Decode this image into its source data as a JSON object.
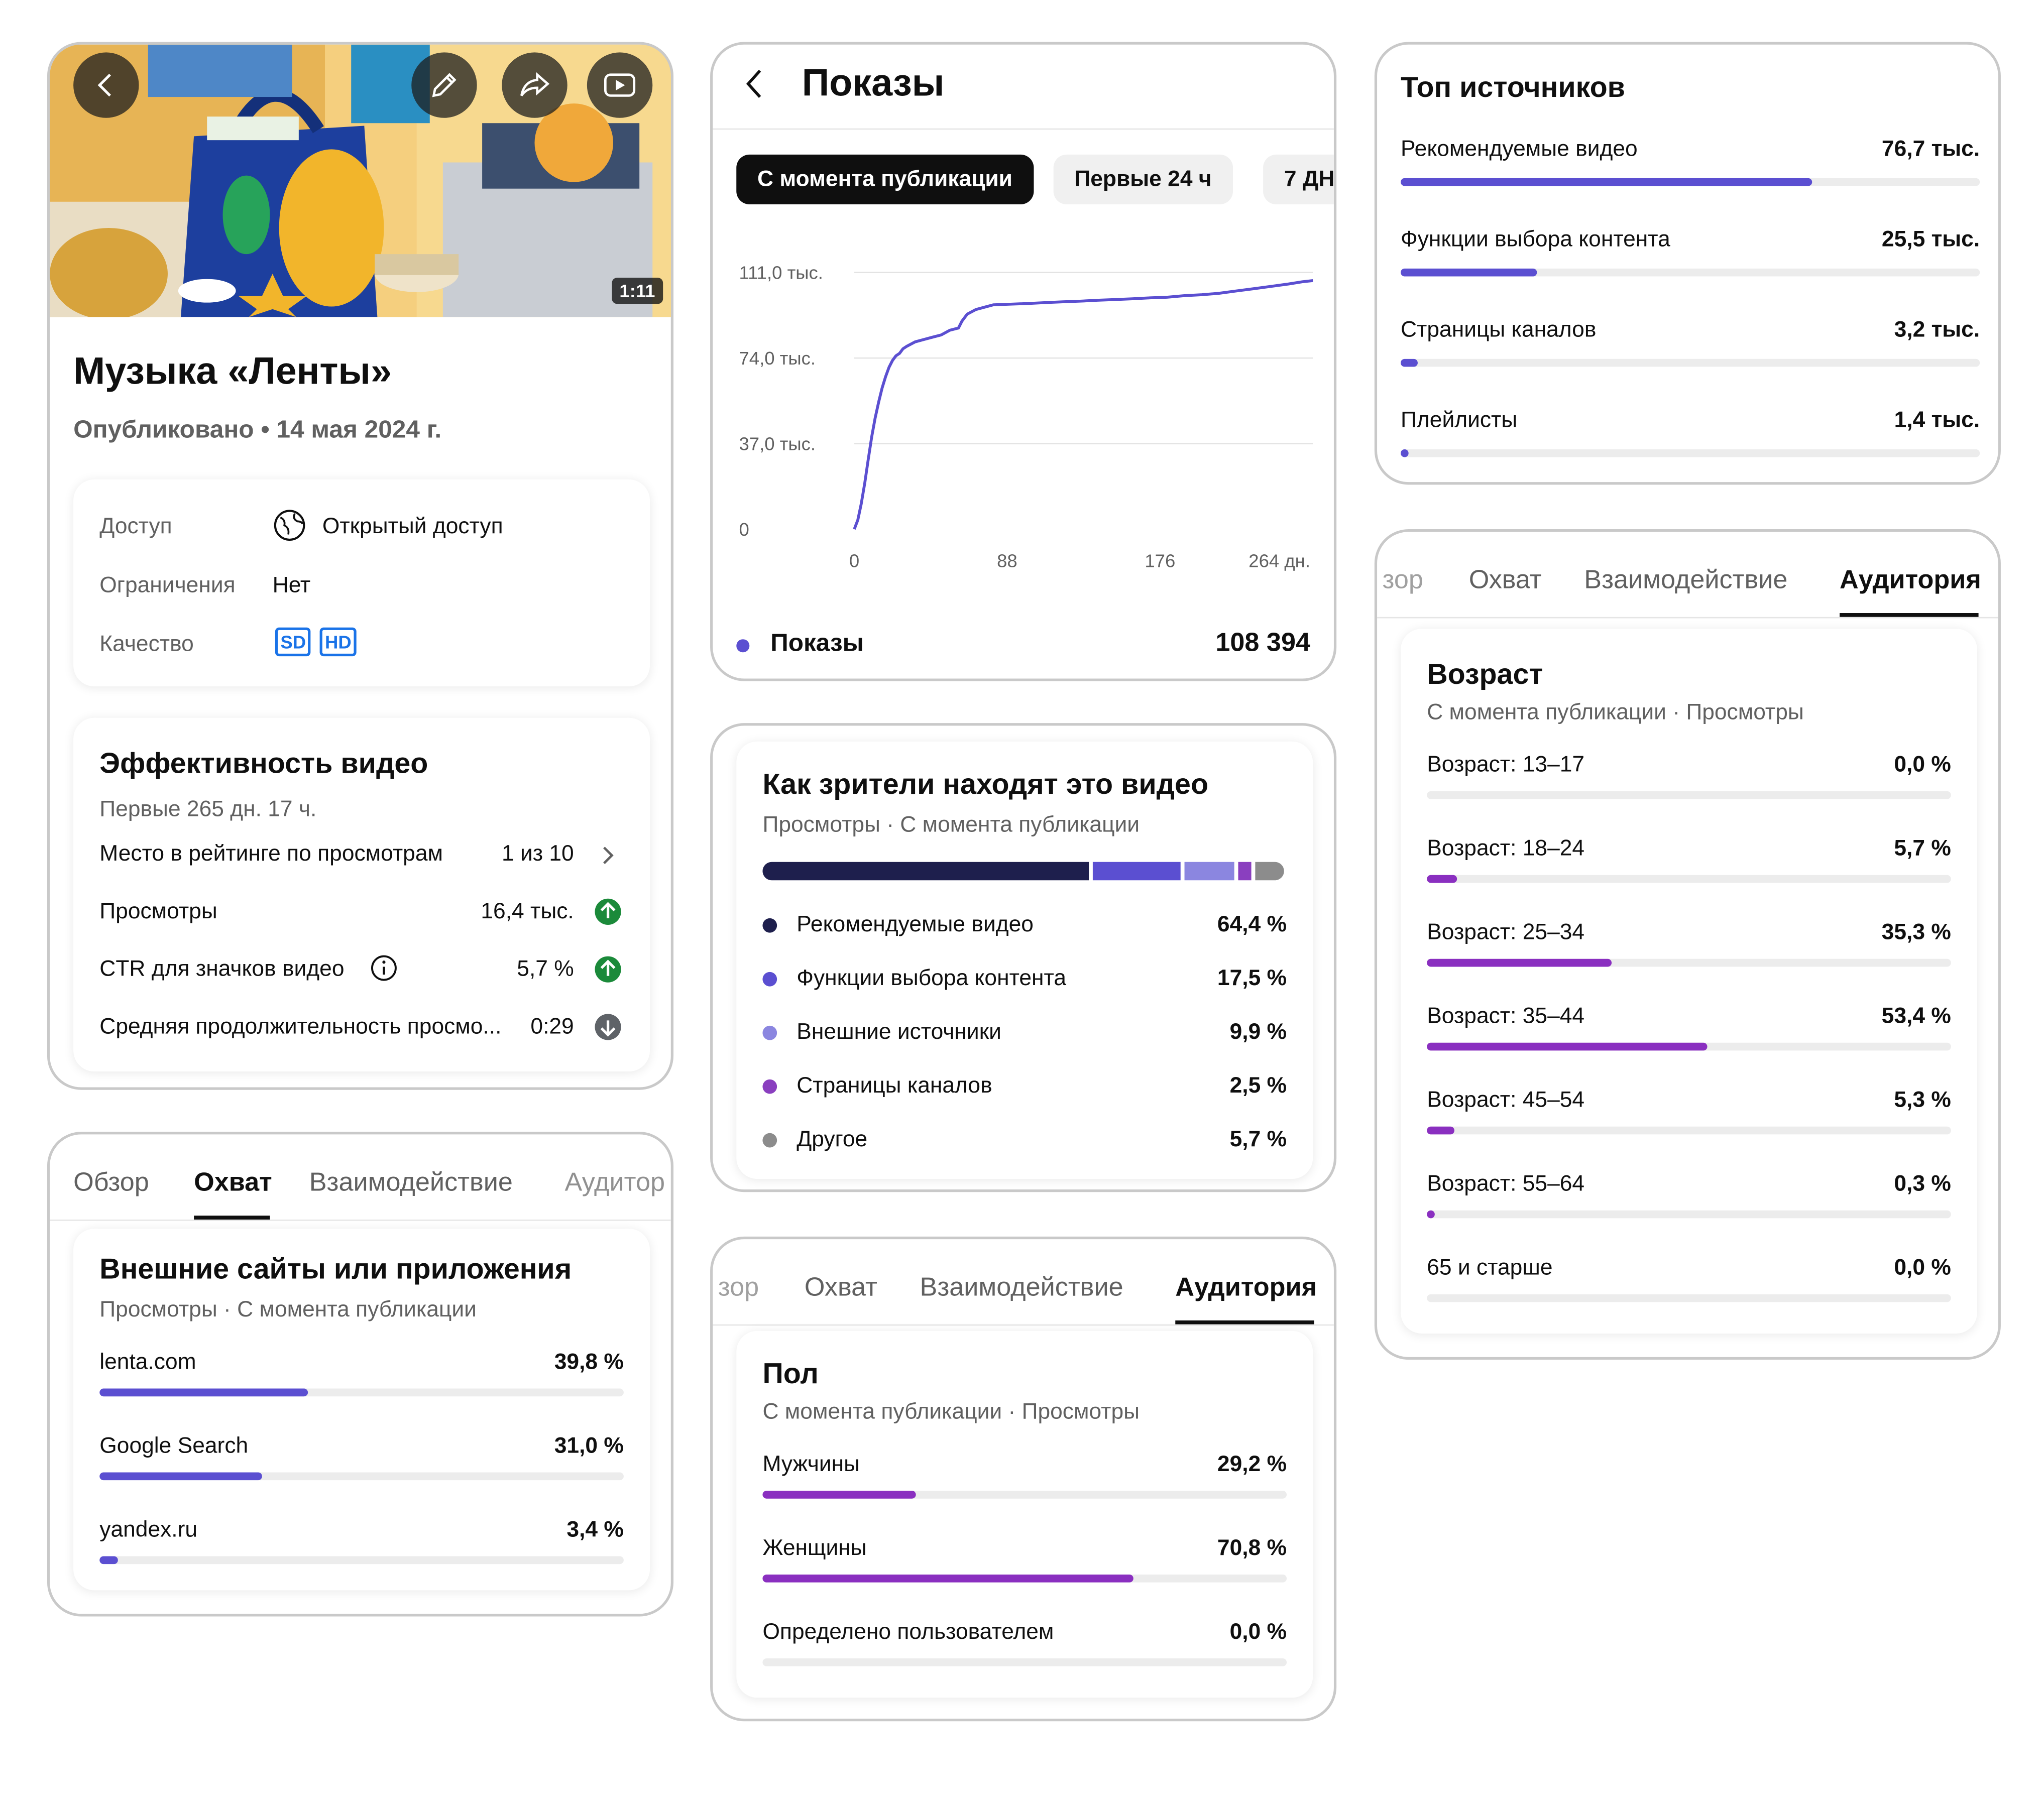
{
  "video_card": {
    "duration": "1:11",
    "title": "Музыка «Ленты»",
    "published": "Опубликовано • 14 мая 2024 г.",
    "access_label": "Доступ",
    "access_value": "Открытый доступ",
    "restrictions_label": "Ограничения",
    "restrictions_value": "Нет",
    "quality_label": "Качество",
    "quality_badges": [
      "SD",
      "HD"
    ],
    "icons": [
      "back-icon",
      "edit-icon",
      "share-icon",
      "youtube-icon",
      "globe-icon"
    ]
  },
  "performance": {
    "title": "Эффективность видео",
    "period": "Первые 265 дн. 17 ч.",
    "rows": [
      {
        "label": "Место в рейтинге по просмотрам",
        "value": "1 из 10",
        "indicator": "chevron"
      },
      {
        "label": "Просмотры",
        "value": "16,4 тыс.",
        "indicator": "up"
      },
      {
        "label": "CTR для значков видео",
        "value": "5,7 %",
        "indicator": "up"
      },
      {
        "label": "Средняя продолжительность просмо...",
        "value": "0:29",
        "indicator": "down"
      }
    ]
  },
  "impressions": {
    "title": "Показы",
    "chips": [
      "С момента публикации",
      "Первые 24 ч",
      "7 ДН"
    ],
    "legend_label": "Показы",
    "legend_value": "108 394",
    "accent": "#5b4fd1"
  },
  "chart_data": {
    "type": "line",
    "x_ticks": [
      "0",
      "88",
      "176",
      "264 дн."
    ],
    "y_ticks": [
      "111,0 тыс.",
      "74,0 тыс.",
      "37,0 тыс.",
      "0"
    ],
    "xlim": [
      0,
      264
    ],
    "ylim": [
      0,
      111
    ],
    "series": [
      {
        "name": "Показы",
        "x": [
          0,
          2,
          4,
          6,
          8,
          10,
          12,
          14,
          16,
          18,
          20,
          22,
          24,
          26,
          28,
          30,
          35,
          40,
          45,
          50,
          55,
          60,
          62,
          65,
          70,
          75,
          80,
          90,
          100,
          110,
          120,
          130,
          140,
          150,
          160,
          170,
          180,
          190,
          200,
          210,
          220,
          230,
          240,
          250,
          258,
          264
        ],
        "y": [
          0,
          4,
          11,
          20,
          30,
          40,
          48,
          55,
          61,
          66,
          70,
          73,
          75,
          76,
          78,
          79,
          81,
          82,
          83,
          84,
          86,
          87,
          90,
          93,
          95,
          96,
          97,
          97.3,
          97.6,
          98,
          98.3,
          98.6,
          99,
          99.3,
          99.6,
          100,
          100.3,
          101,
          101.4,
          102,
          103,
          104,
          105,
          106,
          107,
          107.5
        ]
      }
    ]
  },
  "top_sources": {
    "title": "Топ источников",
    "accent": "#5b4fd1",
    "items": [
      {
        "label": "Рекомендуемые видео",
        "value": "76,7 тыс.",
        "fraction": 0.71
      },
      {
        "label": "Функции выбора контента",
        "value": "25,5 тыс.",
        "fraction": 0.236
      },
      {
        "label": "Страницы каналов",
        "value": "3,2 тыс.",
        "fraction": 0.03
      },
      {
        "label": "Плейлисты",
        "value": "1,4 тыс.",
        "fraction": 0.013
      }
    ]
  },
  "how_viewers_find": {
    "title": "Как зрители находят это видео",
    "subtitle": "Просмотры · С момента публикации",
    "items": [
      {
        "label": "Рекомендуемые видео",
        "value": "64,4 %",
        "percent": 64.4,
        "color": "#1e1f4d"
      },
      {
        "label": "Функции выбора контента",
        "value": "17,5 %",
        "percent": 17.5,
        "color": "#5b4fd1"
      },
      {
        "label": "Внешние источники",
        "value": "9,9 %",
        "percent": 9.9,
        "color": "#8b86e0"
      },
      {
        "label": "Страницы каналов",
        "value": "2,5 %",
        "percent": 2.5,
        "color": "#8a3fbf"
      },
      {
        "label": "Другое",
        "value": "5,7 %",
        "percent": 5.7,
        "color": "#8c8c8c"
      }
    ]
  },
  "external_sites": {
    "tabs": [
      "Обзор",
      "Охват",
      "Взаимодействие",
      "Аудитор"
    ],
    "active_tab": 1,
    "title": "Внешние сайты или приложения",
    "subtitle": "Просмотры · С момента публикации",
    "accent": "#5b4fd1",
    "items": [
      {
        "label": "lenta.com",
        "value": "39,8 %",
        "fraction": 0.398
      },
      {
        "label": "Google Search",
        "value": "31,0 %",
        "fraction": 0.31
      },
      {
        "label": "yandex.ru",
        "value": "3,4 %",
        "fraction": 0.034
      }
    ]
  },
  "gender": {
    "tabs": [
      "зор",
      "Охват",
      "Взаимодействие",
      "Аудитория"
    ],
    "active_tab": 3,
    "title": "Пол",
    "subtitle": "С момента публикации · Просмотры",
    "accent": "#8a2fc0",
    "items": [
      {
        "label": "Мужчины",
        "value": "29,2 %",
        "fraction": 0.292
      },
      {
        "label": "Женщины",
        "value": "70,8 %",
        "fraction": 0.708
      },
      {
        "label": "Определено пользователем",
        "value": "0,0 %",
        "fraction": 0
      }
    ]
  },
  "age": {
    "tabs": [
      "зор",
      "Охват",
      "Взаимодействие",
      "Аудитория"
    ],
    "active_tab": 3,
    "title": "Возраст",
    "subtitle": "С момента публикации · Просмотры",
    "accent": "#8a2fc0",
    "items": [
      {
        "label": "Возраст: 13–17",
        "value": "0,0 %",
        "fraction": 0
      },
      {
        "label": "Возраст: 18–24",
        "value": "5,7 %",
        "fraction": 0.057
      },
      {
        "label": "Возраст: 25–34",
        "value": "35,3 %",
        "fraction": 0.353
      },
      {
        "label": "Возраст: 35–44",
        "value": "53,4 %",
        "fraction": 0.534
      },
      {
        "label": "Возраст: 45–54",
        "value": "5,3 %",
        "fraction": 0.053
      },
      {
        "label": "Возраст: 55–64",
        "value": "0,3 %",
        "fraction": 0.003
      },
      {
        "label": "65 и старше",
        "value": "0,0 %",
        "fraction": 0
      }
    ]
  }
}
